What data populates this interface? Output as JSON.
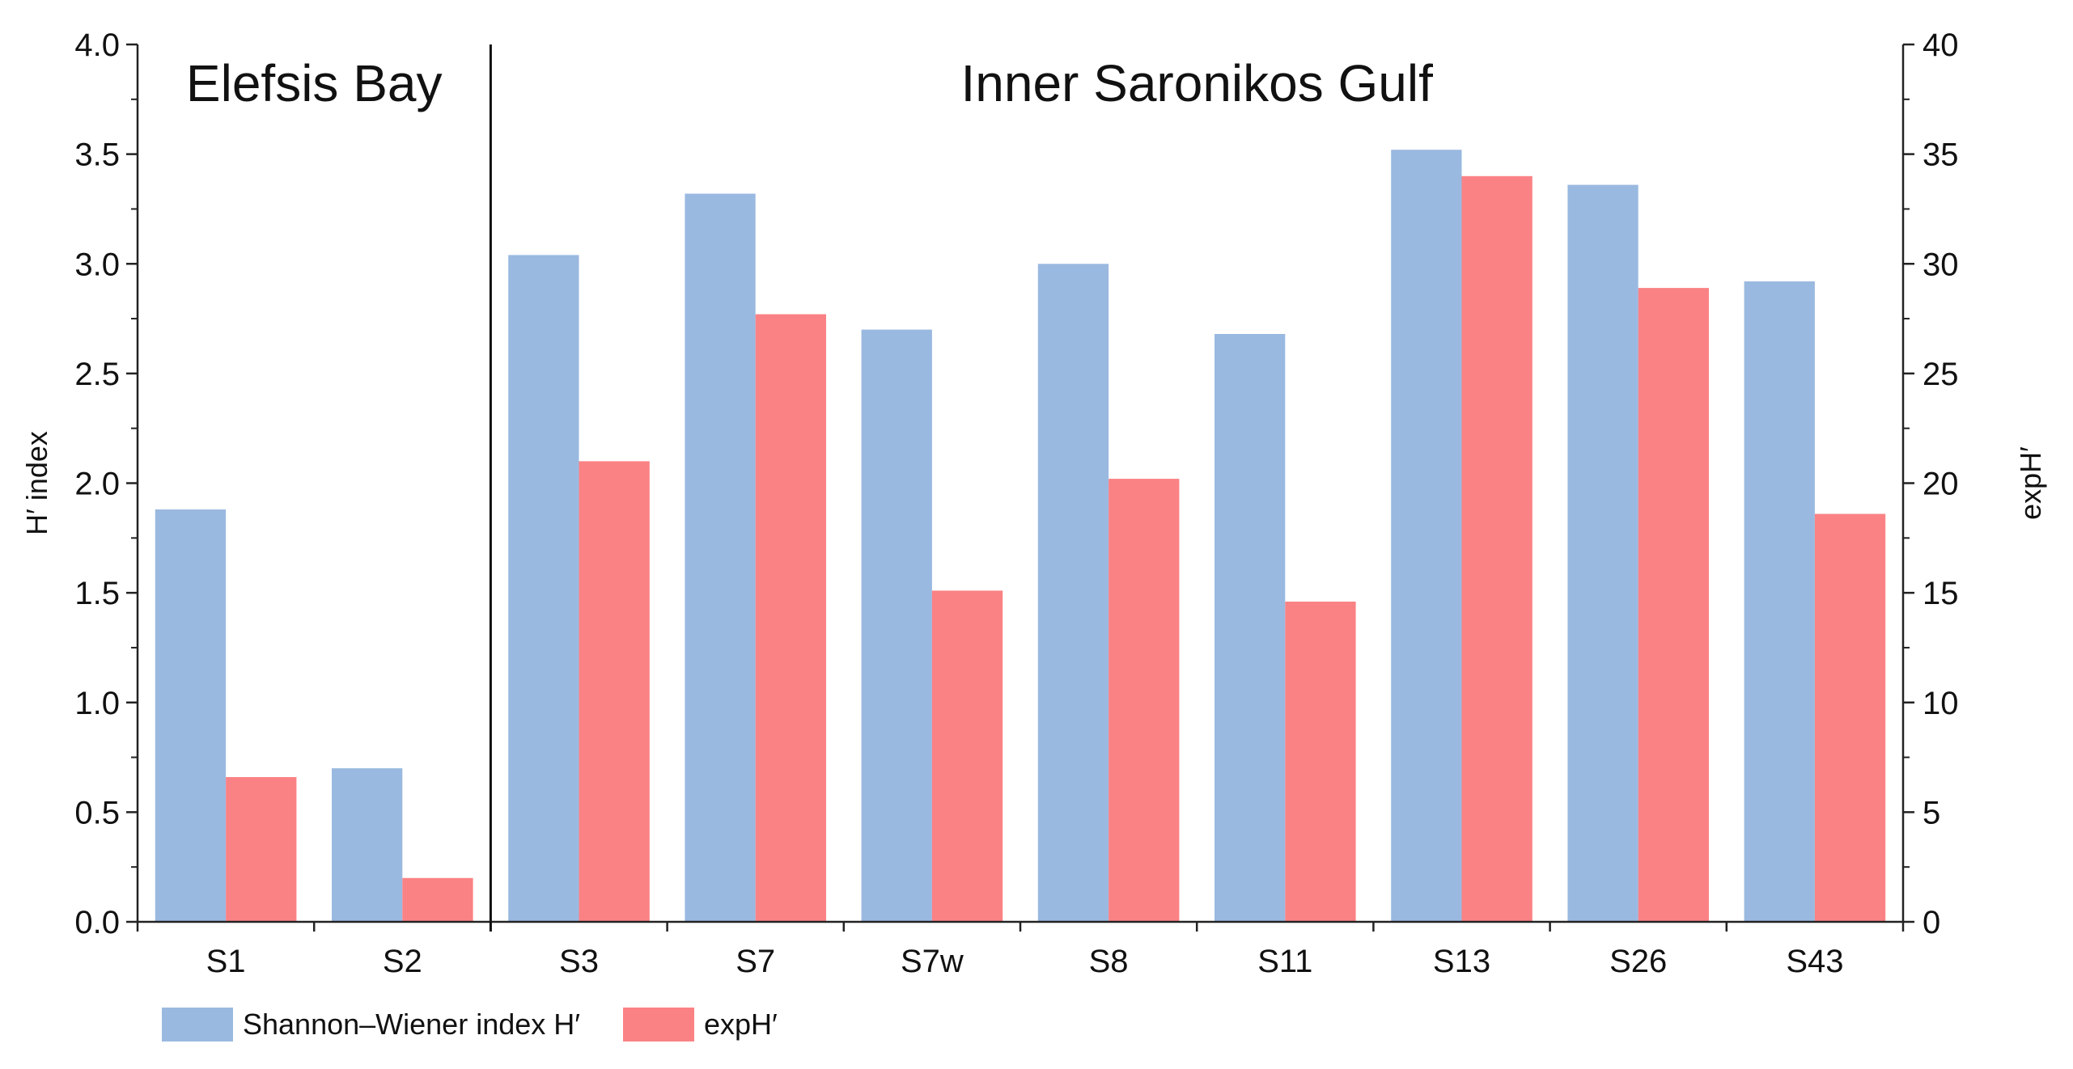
{
  "chart_data": {
    "type": "bar",
    "categories": [
      "S1",
      "S2",
      "S3",
      "S7",
      "S7w",
      "S8",
      "S11",
      "S13",
      "S26",
      "S43"
    ],
    "series": [
      {
        "name": "Shannon–Wiener index H′",
        "axis": "left",
        "color": "#9ab9e0",
        "values": [
          1.88,
          0.7,
          3.04,
          3.32,
          2.7,
          3.0,
          2.68,
          3.52,
          3.36,
          2.92
        ]
      },
      {
        "name": "expH′",
        "axis": "right",
        "color": "#fa8285",
        "values": [
          6.6,
          2.0,
          21.0,
          27.7,
          15.1,
          20.2,
          14.6,
          34.0,
          28.9,
          18.6
        ]
      }
    ],
    "ylabel": "H′ index",
    "y2label": "expH′",
    "xlabel": "",
    "ylim": [
      0,
      4
    ],
    "y2lim": [
      0,
      40
    ],
    "yticks": [
      "0.0",
      "0.5",
      "1.0",
      "1.5",
      "2.0",
      "2.5",
      "3.0",
      "3.5",
      "4.0"
    ],
    "y2ticks": [
      "0",
      "5",
      "10",
      "15",
      "20",
      "25",
      "30",
      "35",
      "40"
    ],
    "regions": [
      {
        "label": "Elefsis Bay",
        "from": "S1",
        "to": "S2"
      },
      {
        "label": "Inner Saronikos Gulf",
        "from": "S3",
        "to": "S43"
      }
    ],
    "legend_position": "bottom-left",
    "grid": false
  }
}
